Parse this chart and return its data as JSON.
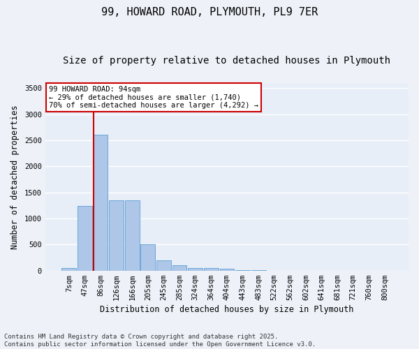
{
  "title_line1": "99, HOWARD ROAD, PLYMOUTH, PL9 7ER",
  "title_line2": "Size of property relative to detached houses in Plymouth",
  "xlabel": "Distribution of detached houses by size in Plymouth",
  "ylabel": "Number of detached properties",
  "categories": [
    "7sqm",
    "47sqm",
    "86sqm",
    "126sqm",
    "166sqm",
    "205sqm",
    "245sqm",
    "285sqm",
    "324sqm",
    "364sqm",
    "404sqm",
    "443sqm",
    "483sqm",
    "522sqm",
    "562sqm",
    "602sqm",
    "641sqm",
    "681sqm",
    "721sqm",
    "760sqm",
    "800sqm"
  ],
  "values": [
    50,
    1240,
    2600,
    1350,
    1350,
    500,
    200,
    100,
    55,
    45,
    30,
    5,
    5,
    0,
    0,
    0,
    0,
    0,
    0,
    0,
    0
  ],
  "bar_color": "#aec6e8",
  "bar_edge_color": "#5a9fd4",
  "vline_color": "#cc0000",
  "annotation_text": "99 HOWARD ROAD: 94sqm\n← 29% of detached houses are smaller (1,740)\n70% of semi-detached houses are larger (4,292) →",
  "annotation_box_color": "#cc0000",
  "annotation_fill": "#ffffff",
  "ylim": [
    0,
    3600
  ],
  "yticks": [
    0,
    500,
    1000,
    1500,
    2000,
    2500,
    3000,
    3500
  ],
  "background_color": "#e8eef8",
  "grid_color": "#ffffff",
  "fig_bg_color": "#eef2f8",
  "footer_line1": "Contains HM Land Registry data © Crown copyright and database right 2025.",
  "footer_line2": "Contains public sector information licensed under the Open Government Licence v3.0.",
  "title_fontsize": 11,
  "subtitle_fontsize": 10,
  "axis_label_fontsize": 8.5,
  "tick_fontsize": 7.5,
  "annotation_fontsize": 7.5,
  "footer_fontsize": 6.5
}
